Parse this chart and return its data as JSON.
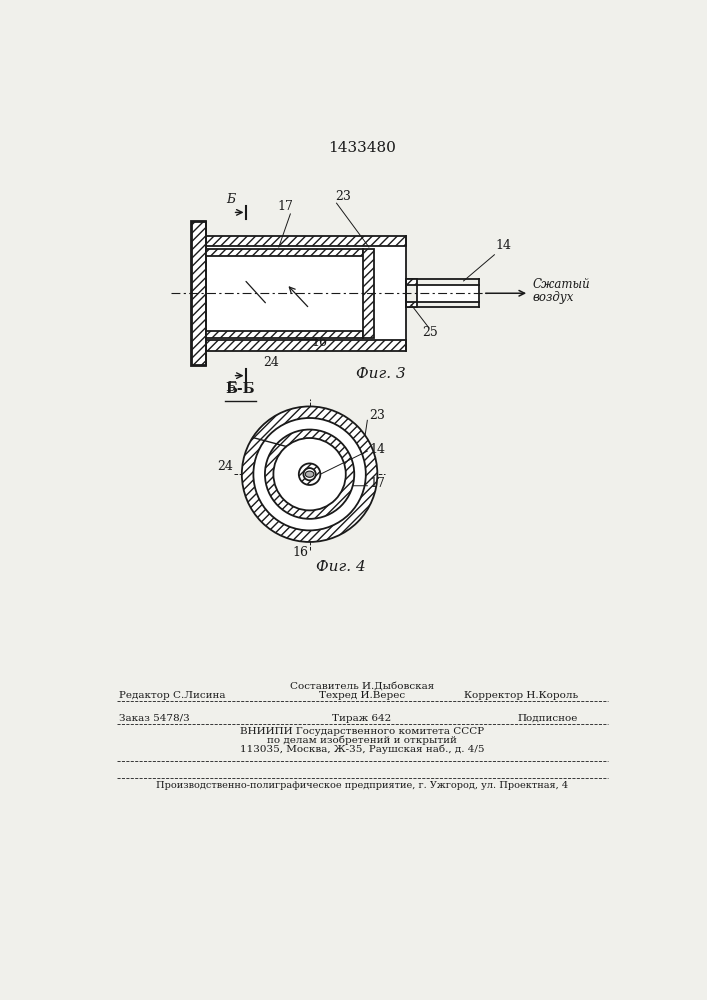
{
  "patent_number": "1433480",
  "fig3_label": "Фиг. 3",
  "fig4_label": "Фиг. 4",
  "section_label": "Б-Б",
  "compressed_air_1": "Сжатый",
  "compressed_air_2": "воздух",
  "editor_label": "Редактор С.Лисина",
  "composer_label": "Составитель И.Дыбовская",
  "techred_label": "Техред И.Верес",
  "corrector_label": "Корректор Н.Король",
  "order_label": "Заказ 5478/3",
  "edition_label": "Тираж 642",
  "subscription_label": "Подписное",
  "vnipi_line1": "ВНИИПИ Государственного комитета СССР",
  "vnipi_line2": "по делам изобретений и открытий",
  "vnipi_line3": "113035, Москва, Ж-35, Раушская наб., д. 4/5",
  "production_line": "Производственно-полиграфическое предприятие, г. Ужгород, ул. Проектная, 4",
  "bg_color": "#f0f0eb",
  "line_color": "#1a1a1a"
}
